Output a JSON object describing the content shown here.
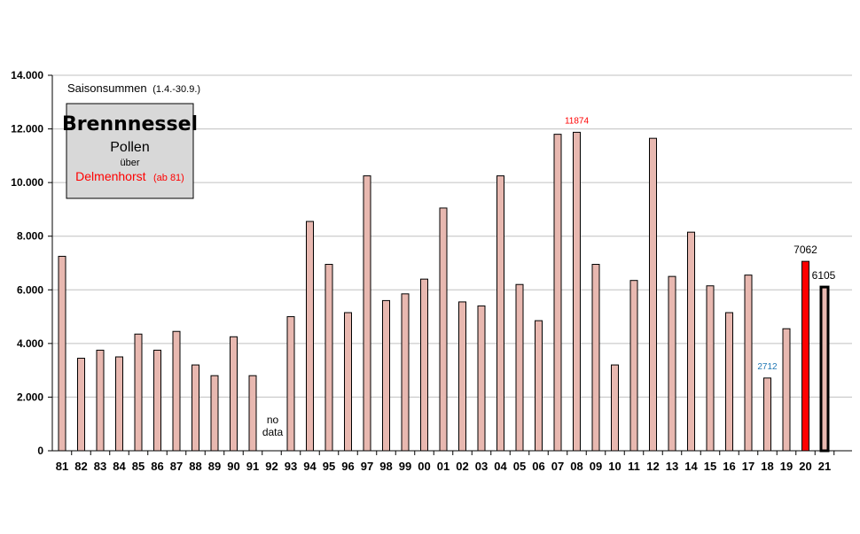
{
  "chart_data": {
    "type": "bar",
    "subtitle_main": "Saisonsummen",
    "subtitle_small": "(1.4.-30.9.)",
    "legend_box": {
      "title": "Brennnessel",
      "line2": "Pollen",
      "line3": "über",
      "line4_place": "Delmenhorst",
      "line4_note": "(ab 81)"
    },
    "ylim": [
      0,
      14000
    ],
    "yticks": [
      {
        "value": 0,
        "label": "0"
      },
      {
        "value": 2000,
        "label": "2.000"
      },
      {
        "value": 4000,
        "label": "4.000"
      },
      {
        "value": 6000,
        "label": "6.000"
      },
      {
        "value": 8000,
        "label": "8.000"
      },
      {
        "value": 10000,
        "label": "10.000"
      },
      {
        "value": 12000,
        "label": "12.000"
      },
      {
        "value": 14000,
        "label": "14.000"
      }
    ],
    "grid": true,
    "categories": [
      "81",
      "82",
      "83",
      "84",
      "85",
      "86",
      "87",
      "88",
      "89",
      "90",
      "91",
      "92",
      "93",
      "94",
      "95",
      "96",
      "97",
      "98",
      "99",
      "00",
      "01",
      "02",
      "03",
      "04",
      "05",
      "06",
      "07",
      "08",
      "09",
      "10",
      "11",
      "12",
      "13",
      "14",
      "15",
      "16",
      "17",
      "18",
      "19",
      "20",
      "21"
    ],
    "values": [
      7250,
      3450,
      3750,
      3500,
      4350,
      3750,
      4450,
      3200,
      2800,
      4250,
      2800,
      null,
      5000,
      8550,
      6950,
      5150,
      10250,
      5600,
      5850,
      6400,
      9050,
      5550,
      5400,
      10250,
      6200,
      4850,
      11800,
      11874,
      6950,
      3200,
      6350,
      11650,
      6500,
      8150,
      6150,
      5150,
      6550,
      2712,
      4550,
      7062,
      6105
    ],
    "colors": {
      "default": "#e8b8b0",
      "highlight": "#ff0000",
      "current": "#e8b8b0",
      "annotation_max": "#ff0000",
      "annotation_min": "#1f77b4",
      "gridline": "#c0c0c0"
    },
    "annotations": [
      {
        "category": "08",
        "label": "11874",
        "color": "#ff0000"
      },
      {
        "category": "18",
        "label": "2712",
        "color": "#1f77b4"
      },
      {
        "category": "20",
        "label": "7062",
        "color": "#000000"
      },
      {
        "category": "21",
        "label": "6105",
        "color": "#000000"
      }
    ],
    "no_data": {
      "category": "92",
      "line1": "no",
      "line2": "data"
    },
    "highlight_category": "20",
    "current_category": "21"
  }
}
